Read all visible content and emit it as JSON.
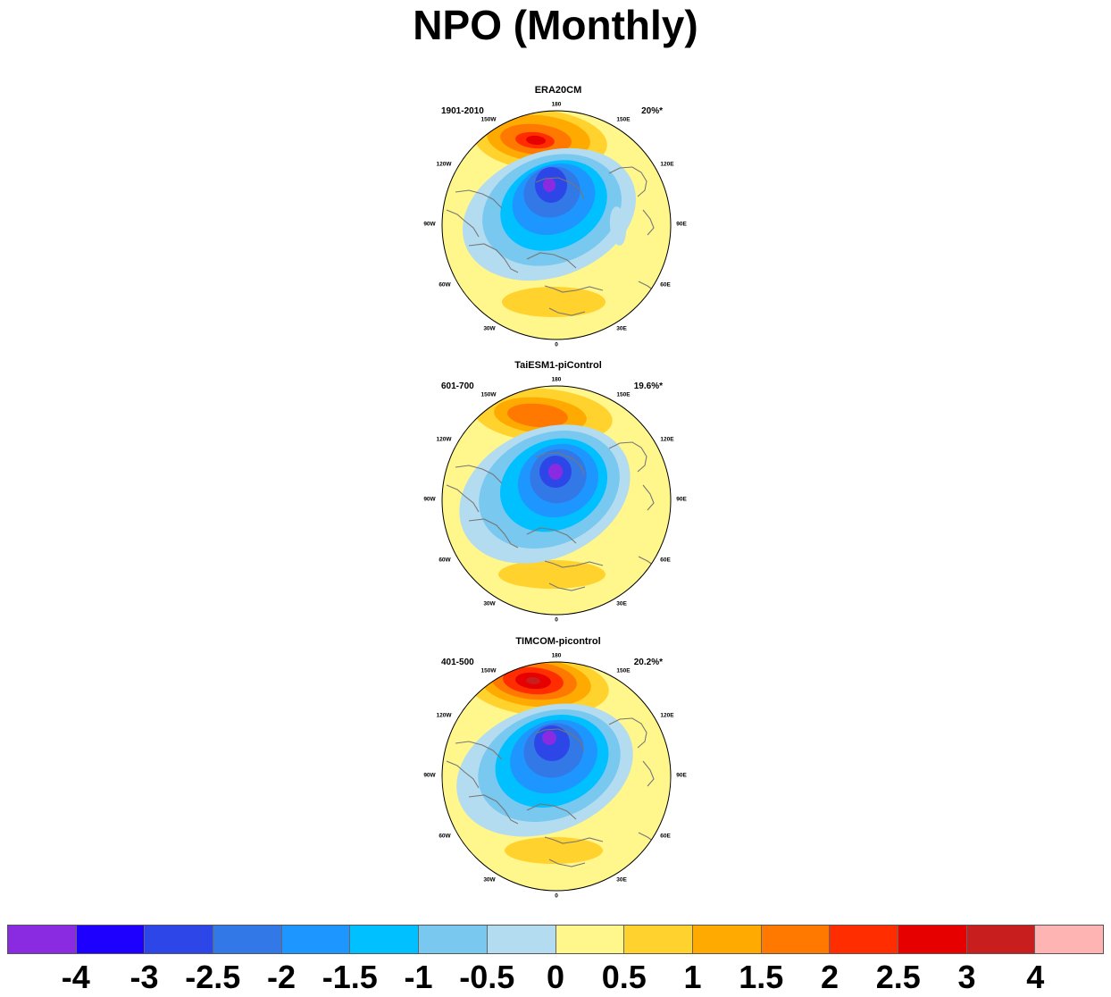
{
  "title": "NPO (Monthly)",
  "panels": [
    {
      "title": "ERA20CM",
      "period": "1901-2010",
      "variance": "20%*",
      "variant": 0
    },
    {
      "title": "TaiESM1-piControl",
      "period": "601-700",
      "variance": "19.6%*",
      "variant": 1
    },
    {
      "title": "TIMCOM-picontrol",
      "period": "401-500",
      "variance": "20.2%*",
      "variant": 2
    }
  ],
  "longitude_labels": [
    "180",
    "150E",
    "120E",
    "90E",
    "60E",
    "30E",
    "0",
    "30W",
    "60W",
    "90W",
    "120W",
    "150W"
  ],
  "colorbar": {
    "colors": [
      "#8a2be2",
      "#1e00ff",
      "#2d46e8",
      "#3278e6",
      "#1e96ff",
      "#00c0ff",
      "#78c8f0",
      "#b4dcf0",
      "#fff68c",
      "#ffd22d",
      "#ffaa00",
      "#ff7800",
      "#ff2d00",
      "#e60000",
      "#c81e1e",
      "#ffb4b4"
    ],
    "labels": [
      "-4",
      "-3",
      "-2.5",
      "-2",
      "-1.5",
      "-1",
      "-0.5",
      "0",
      "0.5",
      "1",
      "1.5",
      "2",
      "2.5",
      "3",
      "4"
    ]
  }
}
